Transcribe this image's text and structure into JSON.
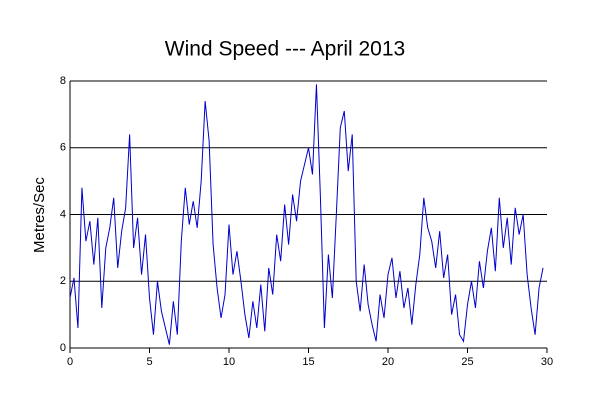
{
  "chart_data": {
    "type": "line",
    "title": "Wind Speed --- April 2013",
    "y_label": "Metres/Sec",
    "x": [
      0,
      0.25,
      0.5,
      0.75,
      1,
      1.25,
      1.5,
      1.75,
      2,
      2.25,
      2.5,
      2.75,
      3,
      3.25,
      3.5,
      3.75,
      4,
      4.25,
      4.5,
      4.75,
      5,
      5.25,
      5.5,
      5.75,
      6,
      6.25,
      6.5,
      6.75,
      7,
      7.25,
      7.5,
      7.75,
      8,
      8.25,
      8.5,
      8.75,
      9,
      9.25,
      9.5,
      9.75,
      10,
      10.25,
      10.5,
      10.75,
      11,
      11.25,
      11.5,
      11.75,
      12,
      12.25,
      12.5,
      12.75,
      13,
      13.25,
      13.5,
      13.75,
      14,
      14.25,
      14.5,
      14.75,
      15,
      15.25,
      15.5,
      15.75,
      16,
      16.25,
      16.5,
      16.75,
      17,
      17.25,
      17.5,
      17.75,
      18,
      18.25,
      18.5,
      18.75,
      19,
      19.25,
      19.5,
      19.75,
      20,
      20.25,
      20.5,
      20.75,
      21,
      21.25,
      21.5,
      21.75,
      22,
      22.25,
      22.5,
      22.75,
      23,
      23.25,
      23.5,
      23.75,
      24,
      24.25,
      24.5,
      24.75,
      25,
      25.25,
      25.5,
      25.75,
      26,
      26.25,
      26.5,
      26.75,
      27,
      27.25,
      27.5,
      27.75,
      28,
      28.25,
      28.5,
      28.75,
      29,
      29.25,
      29.5,
      29.75
    ],
    "series": [
      {
        "name": "Wind Speed",
        "color": "#0000cc",
        "values": [
          1.5,
          2.1,
          0.6,
          4.8,
          3.2,
          3.8,
          2.5,
          3.9,
          1.2,
          3.0,
          3.6,
          4.5,
          2.4,
          3.5,
          4.2,
          6.4,
          3.0,
          3.9,
          2.2,
          3.4,
          1.5,
          0.4,
          2.0,
          1.1,
          0.6,
          0.1,
          1.4,
          0.4,
          3.2,
          4.8,
          3.7,
          4.4,
          3.6,
          5.0,
          7.4,
          6.2,
          3.1,
          1.8,
          0.9,
          1.6,
          3.7,
          2.2,
          2.9,
          2.0,
          1.0,
          0.3,
          1.4,
          0.6,
          1.9,
          0.5,
          2.4,
          1.6,
          3.4,
          2.6,
          4.3,
          3.1,
          4.6,
          3.8,
          5.0,
          5.5,
          6.0,
          5.2,
          7.9,
          4.5,
          0.6,
          2.8,
          1.5,
          4.0,
          6.6,
          7.1,
          5.3,
          6.4,
          2.0,
          1.1,
          2.5,
          1.3,
          0.7,
          0.2,
          1.6,
          0.9,
          2.2,
          2.7,
          1.5,
          2.3,
          1.2,
          1.8,
          0.7,
          1.9,
          2.8,
          4.5,
          3.6,
          3.2,
          2.4,
          3.5,
          2.1,
          2.8,
          1.0,
          1.6,
          0.4,
          0.2,
          1.3,
          2.0,
          1.2,
          2.6,
          1.8,
          2.9,
          3.6,
          2.3,
          4.5,
          3.0,
          3.9,
          2.5,
          4.2,
          3.4,
          4.0,
          2.2,
          1.2,
          0.4,
          1.8,
          2.4
        ]
      }
    ],
    "xlim": [
      0,
      30
    ],
    "xticks": [
      0,
      5,
      10,
      15,
      20,
      25,
      30
    ],
    "ylim": [
      0,
      8
    ],
    "yticks": [
      0,
      2,
      4,
      6,
      8
    ],
    "grid": true
  }
}
